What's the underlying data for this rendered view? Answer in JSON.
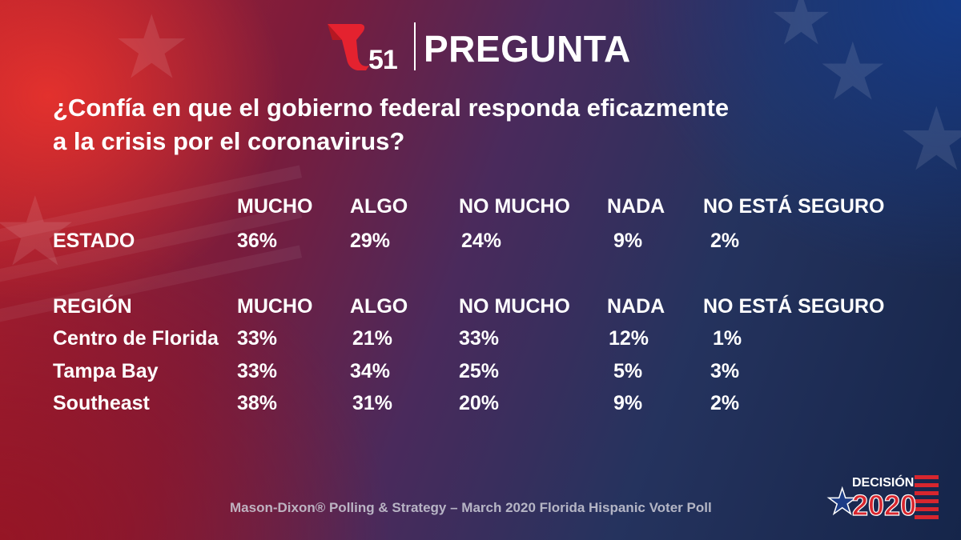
{
  "brand": {
    "logo_number": "51",
    "section_title": "PREGUNTA"
  },
  "question": {
    "line1": "¿Confía en que el gobierno federal responda eficazmente",
    "line2": "a la crisis por el coronavirus?"
  },
  "state_table": {
    "headers": [
      "MUCHO",
      "ALGO",
      "NO MUCHO",
      "NADA",
      "NO ESTÁ SEGURO"
    ],
    "row": {
      "label": "ESTADO",
      "values": [
        "36%",
        "29%",
        "24%",
        "9%",
        "2%"
      ]
    }
  },
  "region_table": {
    "title": "REGIÓN",
    "headers": [
      "MUCHO",
      "ALGO",
      "NO MUCHO",
      "NADA",
      "NO ESTÁ SEGURO"
    ],
    "rows": [
      {
        "label": "Centro de Florida",
        "values": [
          "33%",
          "21%",
          "33%",
          "12%",
          "1%"
        ]
      },
      {
        "label": "Tampa Bay",
        "values": [
          "33%",
          "34%",
          "25%",
          "5%",
          "3%"
        ]
      },
      {
        "label": "Southeast",
        "values": [
          "38%",
          "31%",
          "20%",
          "9%",
          "2%"
        ]
      }
    ]
  },
  "footer": {
    "source": "Mason-Dixon® Polling & Strategy – March 2020 Florida Hispanic Voter Poll"
  },
  "decision_logo": {
    "word": "DECISIÓN",
    "year": "2020"
  },
  "colors": {
    "logo_red": "#e4222f",
    "decision_red": "#d7262e",
    "decision_blue": "#1c3c86"
  },
  "icons": [
    "telemundo-t-logo-icon",
    "star-icon",
    "decision-2020-logo-icon"
  ]
}
